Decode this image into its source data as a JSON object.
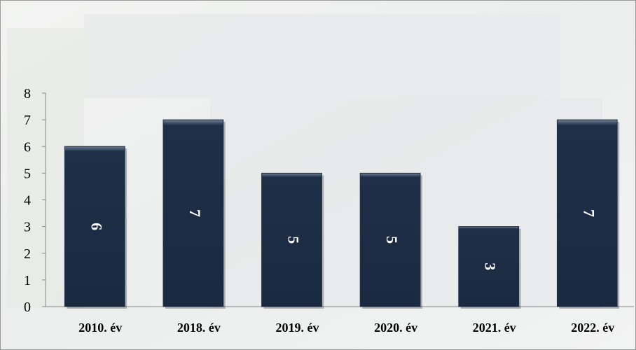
{
  "chart_data": {
    "type": "bar",
    "categories": [
      "2010. év",
      "2018. év",
      "2019. év",
      "2020. év",
      "2021. év",
      "2022. év"
    ],
    "values": [
      6,
      7,
      5,
      5,
      3,
      7
    ],
    "color": "#1e2f47",
    "ylim": [
      0,
      8
    ],
    "yticks": [
      0,
      1,
      2,
      3,
      4,
      5,
      6,
      7,
      8
    ],
    "grid": false
  }
}
